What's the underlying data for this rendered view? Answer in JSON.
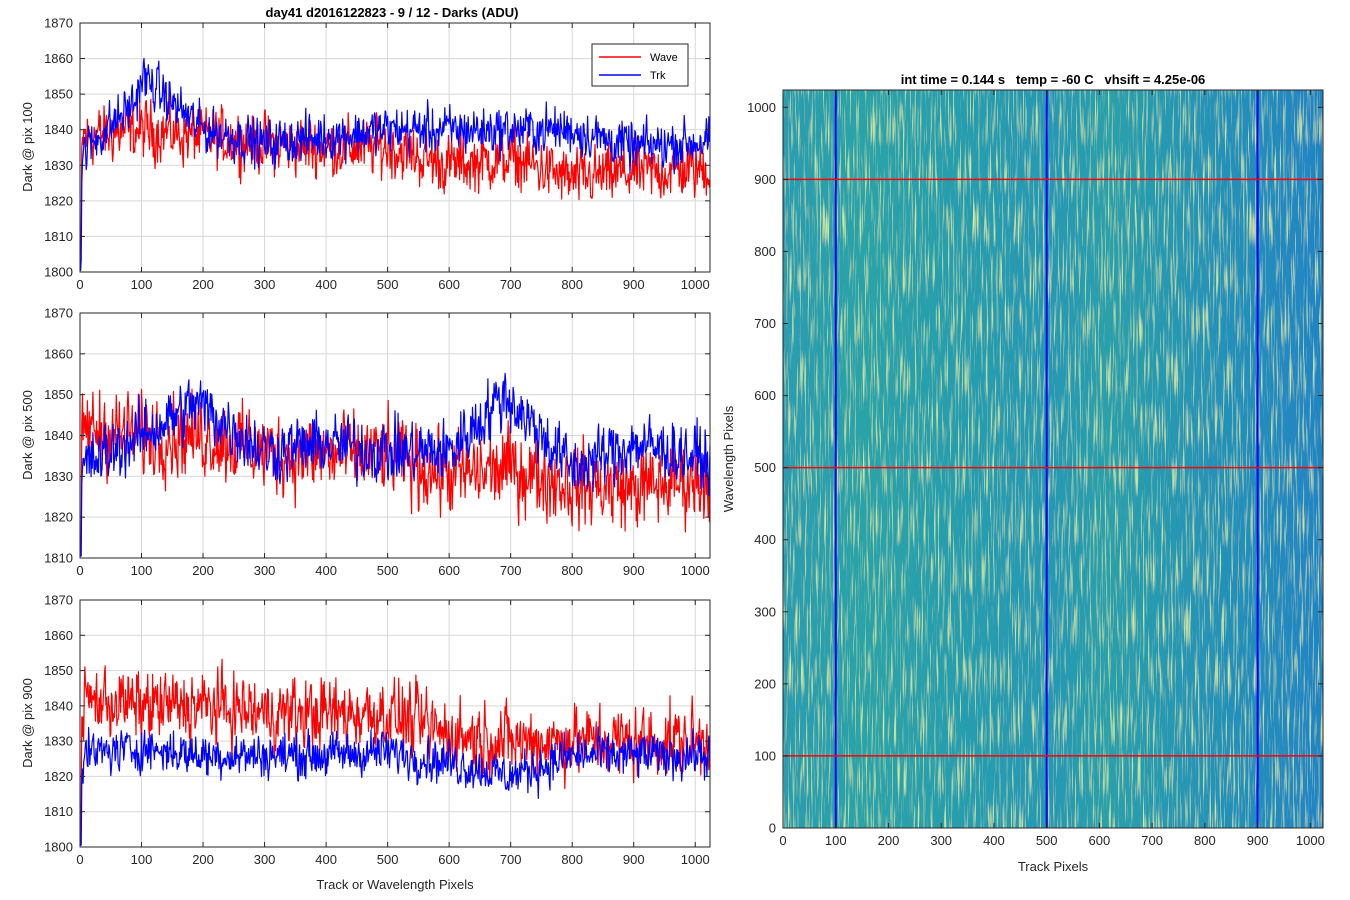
{
  "colors": {
    "wave": "#ff0000",
    "trk": "#0000ff",
    "grid": "#d7d7d7",
    "heatmap_low": "#1f77c8",
    "heatmap_mid": "#1e9fb5",
    "heatmap_high": "#9ccd55"
  },
  "chart_data": [
    {
      "type": "line",
      "title": "day41 d2016122823 - 9 / 12 - Darks (ADU)",
      "xlabel": "",
      "ylabel": "Dark @ pix 100",
      "xlim": [
        0,
        1024
      ],
      "ylim": [
        1800,
        1870
      ],
      "xticks": [
        0,
        100,
        200,
        300,
        400,
        500,
        600,
        700,
        800,
        900,
        1000
      ],
      "yticks": [
        1800,
        1810,
        1820,
        1830,
        1840,
        1850,
        1860,
        1870
      ],
      "grid": true,
      "legend": {
        "placement": "top-right",
        "entries": [
          "Wave",
          "Trk"
        ]
      },
      "series": [
        {
          "name": "Wave",
          "color": "red",
          "sample_x": [
            0,
            100,
            200,
            300,
            400,
            500,
            600,
            700,
            800,
            900,
            1024
          ],
          "sample_y": [
            1838,
            1840,
            1838,
            1836,
            1835,
            1835,
            1830,
            1832,
            1826,
            1828,
            1829
          ],
          "noise_range": [
            -13,
            22
          ]
        },
        {
          "name": "Trk",
          "color": "blue",
          "sample_x": [
            0,
            90,
            100,
            200,
            300,
            400,
            500,
            600,
            700,
            800,
            900,
            1024
          ],
          "sample_y": [
            1833,
            1848,
            1855,
            1840,
            1836,
            1838,
            1840,
            1840,
            1840,
            1840,
            1835,
            1837
          ],
          "noise_range": [
            -12,
            16
          ]
        }
      ]
    },
    {
      "type": "line",
      "title": "",
      "xlabel": "",
      "ylabel": "Dark @ pix 500",
      "xlim": [
        0,
        1024
      ],
      "ylim": [
        1810,
        1870
      ],
      "xticks": [
        0,
        100,
        200,
        300,
        400,
        500,
        600,
        700,
        800,
        900,
        1000
      ],
      "yticks": [
        1810,
        1820,
        1830,
        1840,
        1850,
        1860,
        1870
      ],
      "grid": true,
      "series": [
        {
          "name": "Wave",
          "color": "red",
          "sample_x": [
            0,
            100,
            200,
            300,
            400,
            500,
            600,
            700,
            800,
            900,
            1024
          ],
          "sample_y": [
            1842,
            1840,
            1840,
            1836,
            1835,
            1835,
            1830,
            1832,
            1828,
            1827,
            1830
          ],
          "noise_range": [
            -16,
            26
          ]
        },
        {
          "name": "Trk",
          "color": "blue",
          "sample_x": [
            0,
            100,
            190,
            300,
            400,
            500,
            600,
            690,
            800,
            900,
            1024
          ],
          "sample_y": [
            1832,
            1840,
            1848,
            1836,
            1838,
            1836,
            1836,
            1850,
            1832,
            1838,
            1834
          ],
          "noise_range": [
            -15,
            17
          ]
        }
      ]
    },
    {
      "type": "line",
      "title": "",
      "xlabel": "Track or Wavelength Pixels",
      "ylabel": "Dark @ pix 900",
      "xlim": [
        0,
        1024
      ],
      "ylim": [
        1800,
        1870
      ],
      "xticks": [
        0,
        100,
        200,
        300,
        400,
        500,
        600,
        700,
        800,
        900,
        1000
      ],
      "yticks": [
        1800,
        1810,
        1820,
        1830,
        1840,
        1850,
        1860,
        1870
      ],
      "grid": true,
      "series": [
        {
          "name": "Wave",
          "color": "red",
          "sample_x": [
            0,
            100,
            200,
            300,
            400,
            500,
            600,
            700,
            800,
            900,
            1024
          ],
          "sample_y": [
            1842,
            1840,
            1840,
            1838,
            1838,
            1838,
            1832,
            1830,
            1830,
            1830,
            1830
          ],
          "noise_range": [
            -16,
            26
          ]
        },
        {
          "name": "Trk",
          "color": "blue",
          "sample_x": [
            0,
            100,
            200,
            300,
            400,
            500,
            600,
            700,
            800,
            900,
            1024
          ],
          "sample_y": [
            1826,
            1828,
            1826,
            1826,
            1826,
            1827,
            1824,
            1820,
            1826,
            1826,
            1826
          ],
          "noise_range": [
            -12,
            14
          ]
        }
      ]
    },
    {
      "type": "heatmap",
      "title": "int time = 0.144 s   temp = -60 C   vhsift = 4.25e-06",
      "xlabel": "Track Pixels",
      "ylabel": "Wavelength Pixels",
      "xlim": [
        0,
        1024
      ],
      "ylim": [
        0,
        1024
      ],
      "xticks": [
        0,
        100,
        200,
        300,
        400,
        500,
        600,
        700,
        800,
        900,
        1000
      ],
      "yticks": [
        0,
        100,
        200,
        300,
        400,
        500,
        600,
        700,
        800,
        900,
        1000
      ],
      "grid": false,
      "vertical_markers": {
        "color": "blue",
        "x": [
          100,
          500,
          900
        ]
      },
      "horizontal_markers": {
        "color": "red",
        "y": [
          100,
          500,
          900
        ]
      }
    }
  ]
}
